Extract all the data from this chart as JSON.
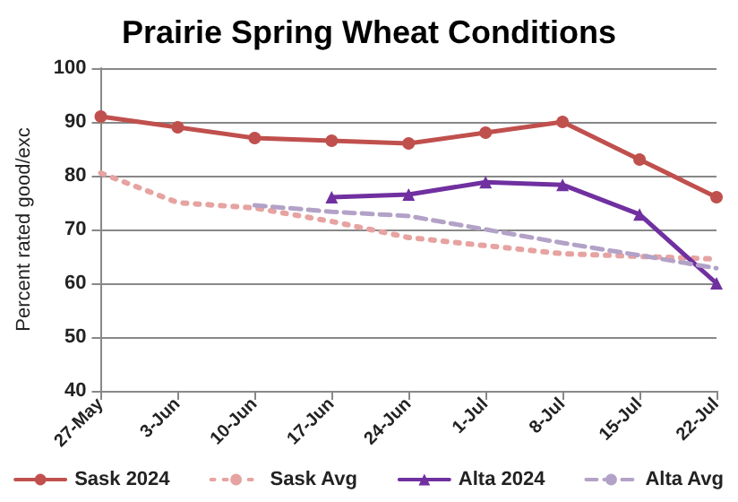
{
  "chart_data": {
    "type": "line",
    "title": "Prairie Spring Wheat Conditions",
    "ylabel": "Percent rated good/exc",
    "categories": [
      "27-May",
      "3-Jun",
      "10-Jun",
      "17-Jun",
      "24-Jun",
      "1-Jul",
      "8-Jul",
      "15-Jul",
      "22-Jul"
    ],
    "series": [
      {
        "name": "Sask 2024",
        "color": "#c0504d",
        "marker": "circle",
        "line_style": "solid",
        "values": [
          91,
          89,
          87,
          86.5,
          86,
          88,
          90,
          83,
          76
        ]
      },
      {
        "name": "Sask Avg",
        "color": "#e6a3a1",
        "marker": "none",
        "line_style": "dotted",
        "values": [
          80.5,
          75,
          74,
          71.5,
          68.5,
          67,
          65.5,
          65,
          64.5
        ]
      },
      {
        "name": "Alta 2024",
        "color": "#7030a0",
        "marker": "triangle",
        "line_style": "solid",
        "values": [
          null,
          null,
          null,
          76,
          76.5,
          78.8,
          78.3,
          72.8,
          60
        ]
      },
      {
        "name": "Alta Avg",
        "color": "#b3a2c7",
        "marker": "none",
        "line_style": "dashed",
        "values": [
          null,
          null,
          74.5,
          73.3,
          72.5,
          70,
          67.5,
          65.2,
          62.8
        ]
      }
    ],
    "ylim": [
      40,
      100
    ],
    "yticks": [
      40,
      50,
      60,
      70,
      80,
      90,
      100
    ],
    "grid": "y",
    "legend": "bottom"
  }
}
